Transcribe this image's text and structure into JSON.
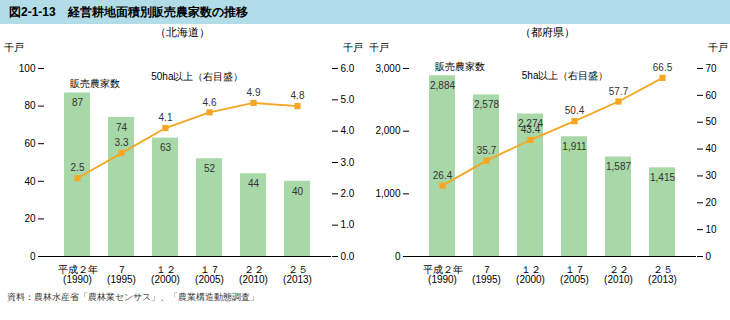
{
  "title": "図2-1-13　経営耕地面積別販売農家数の推移",
  "source": "資料：農林水産省「農林業センサス」、「農業構造動態調査」",
  "chart_data": [
    {
      "type": "bar",
      "subtitle": "（北海道）",
      "categories": [
        "平成２年\n(1990)",
        "７\n(1995)",
        "１２\n(2000)",
        "１７\n(2005)",
        "２２\n(2010)",
        "２５\n(2013)"
      ],
      "ylabel": "千戸",
      "y2label": "千戸",
      "ylim": [
        0,
        100
      ],
      "yticks": [
        0,
        20,
        40,
        60,
        80,
        100
      ],
      "y2lim": [
        0,
        6
      ],
      "y2ticks": [
        0,
        1,
        2,
        3,
        4,
        5,
        6
      ],
      "data_labels": true,
      "series": [
        {
          "name": "販売農家数",
          "type": "bar",
          "color": "#a8d8a8",
          "values": [
            87,
            74,
            63,
            52,
            44,
            40
          ]
        },
        {
          "name": "50ha以上（右目盛）",
          "type": "line",
          "axis": "y2",
          "color": "#f5a623",
          "marker": "square",
          "values": [
            2.5,
            3.3,
            4.1,
            4.6,
            4.9,
            4.8
          ]
        }
      ]
    },
    {
      "type": "bar",
      "subtitle": "（都府県）",
      "categories": [
        "平成２年\n(1990)",
        "７\n(1995)",
        "１２\n(2000)",
        "１７\n(2005)",
        "２２\n(2010)",
        "２５\n(2013)"
      ],
      "ylabel": "千戸",
      "y2label": "千戸",
      "ylim": [
        0,
        3000
      ],
      "yticks": [
        0,
        1000,
        2000,
        3000
      ],
      "y2lim": [
        0,
        70
      ],
      "y2ticks": [
        0,
        10,
        20,
        30,
        40,
        50,
        60,
        70
      ],
      "data_labels": true,
      "series": [
        {
          "name": "販売農家数",
          "type": "bar",
          "color": "#a8d8a8",
          "values": [
            2884,
            2578,
            2274,
            1911,
            1587,
            1415
          ],
          "value_labels": [
            "2,884",
            "2,578",
            "2,274",
            "1,911",
            "1,587",
            "1,415"
          ]
        },
        {
          "name": "5ha以上（右目盛）",
          "type": "line",
          "axis": "y2",
          "color": "#f5a623",
          "marker": "square",
          "values": [
            26.4,
            35.7,
            43.4,
            50.4,
            57.7,
            66.5
          ]
        }
      ]
    }
  ]
}
